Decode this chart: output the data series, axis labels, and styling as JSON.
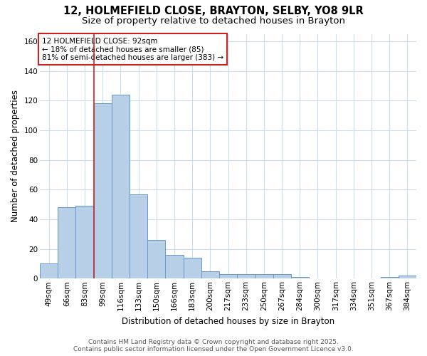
{
  "title1": "12, HOLMEFIELD CLOSE, BRAYTON, SELBY, YO8 9LR",
  "title2": "Size of property relative to detached houses in Brayton",
  "xlabel": "Distribution of detached houses by size in Brayton",
  "ylabel": "Number of detached properties",
  "categories": [
    "49sqm",
    "66sqm",
    "83sqm",
    "99sqm",
    "116sqm",
    "133sqm",
    "150sqm",
    "166sqm",
    "183sqm",
    "200sqm",
    "217sqm",
    "233sqm",
    "250sqm",
    "267sqm",
    "284sqm",
    "300sqm",
    "317sqm",
    "334sqm",
    "351sqm",
    "367sqm",
    "384sqm"
  ],
  "values": [
    10,
    48,
    49,
    118,
    124,
    57,
    26,
    16,
    14,
    5,
    3,
    3,
    3,
    3,
    1,
    0,
    0,
    0,
    0,
    1,
    2
  ],
  "bar_color": "#b8cfe8",
  "bar_edge_color": "#6699cc",
  "vline_color": "#cc2222",
  "annotation_text": "12 HOLMEFIELD CLOSE: 92sqm\n← 18% of detached houses are smaller (85)\n81% of semi-detached houses are larger (383) →",
  "annotation_box_facecolor": "white",
  "annotation_box_edgecolor": "#cc2222",
  "ylim": [
    0,
    165
  ],
  "background_color": "#ffffff",
  "plot_bg_color": "#ffffff",
  "grid_color": "#ccddee",
  "footer1": "Contains HM Land Registry data © Crown copyright and database right 2025.",
  "footer2": "Contains public sector information licensed under the Open Government Licence v3.0.",
  "title_fontsize": 10.5,
  "subtitle_fontsize": 9.5,
  "axis_label_fontsize": 8.5,
  "tick_fontsize": 7.5,
  "footer_fontsize": 6.5
}
